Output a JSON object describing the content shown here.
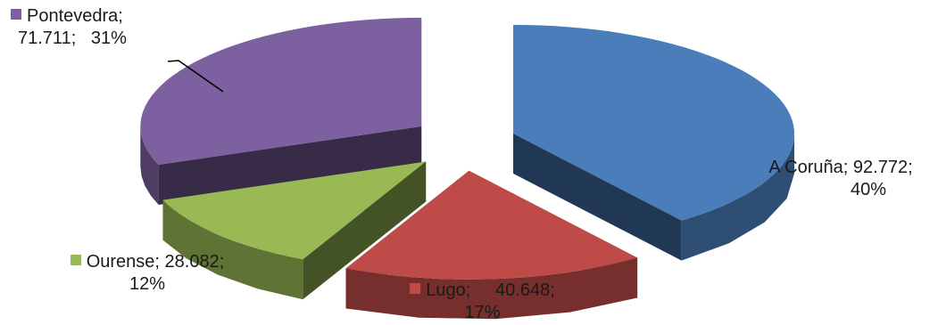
{
  "chart_data": {
    "type": "pie",
    "style": "exploded 3D pie",
    "legend": "none",
    "title": "",
    "slices": [
      {
        "name": "A Coruña",
        "value": 92772,
        "value_label": "92.772",
        "percent_label": "40%",
        "color": "#4A7DBA"
      },
      {
        "name": "Lugo",
        "value": 40648,
        "value_label": "40.648",
        "percent_label": "17%",
        "color": "#BE4B48"
      },
      {
        "name": "Ourense",
        "value": 28082,
        "value_label": "28.082",
        "percent_label": "12%",
        "color": "#98B954"
      },
      {
        "name": "Pontevedra",
        "value": 71711,
        "value_label": "71.711",
        "percent_label": "31%",
        "color": "#7D60A0"
      }
    ]
  }
}
